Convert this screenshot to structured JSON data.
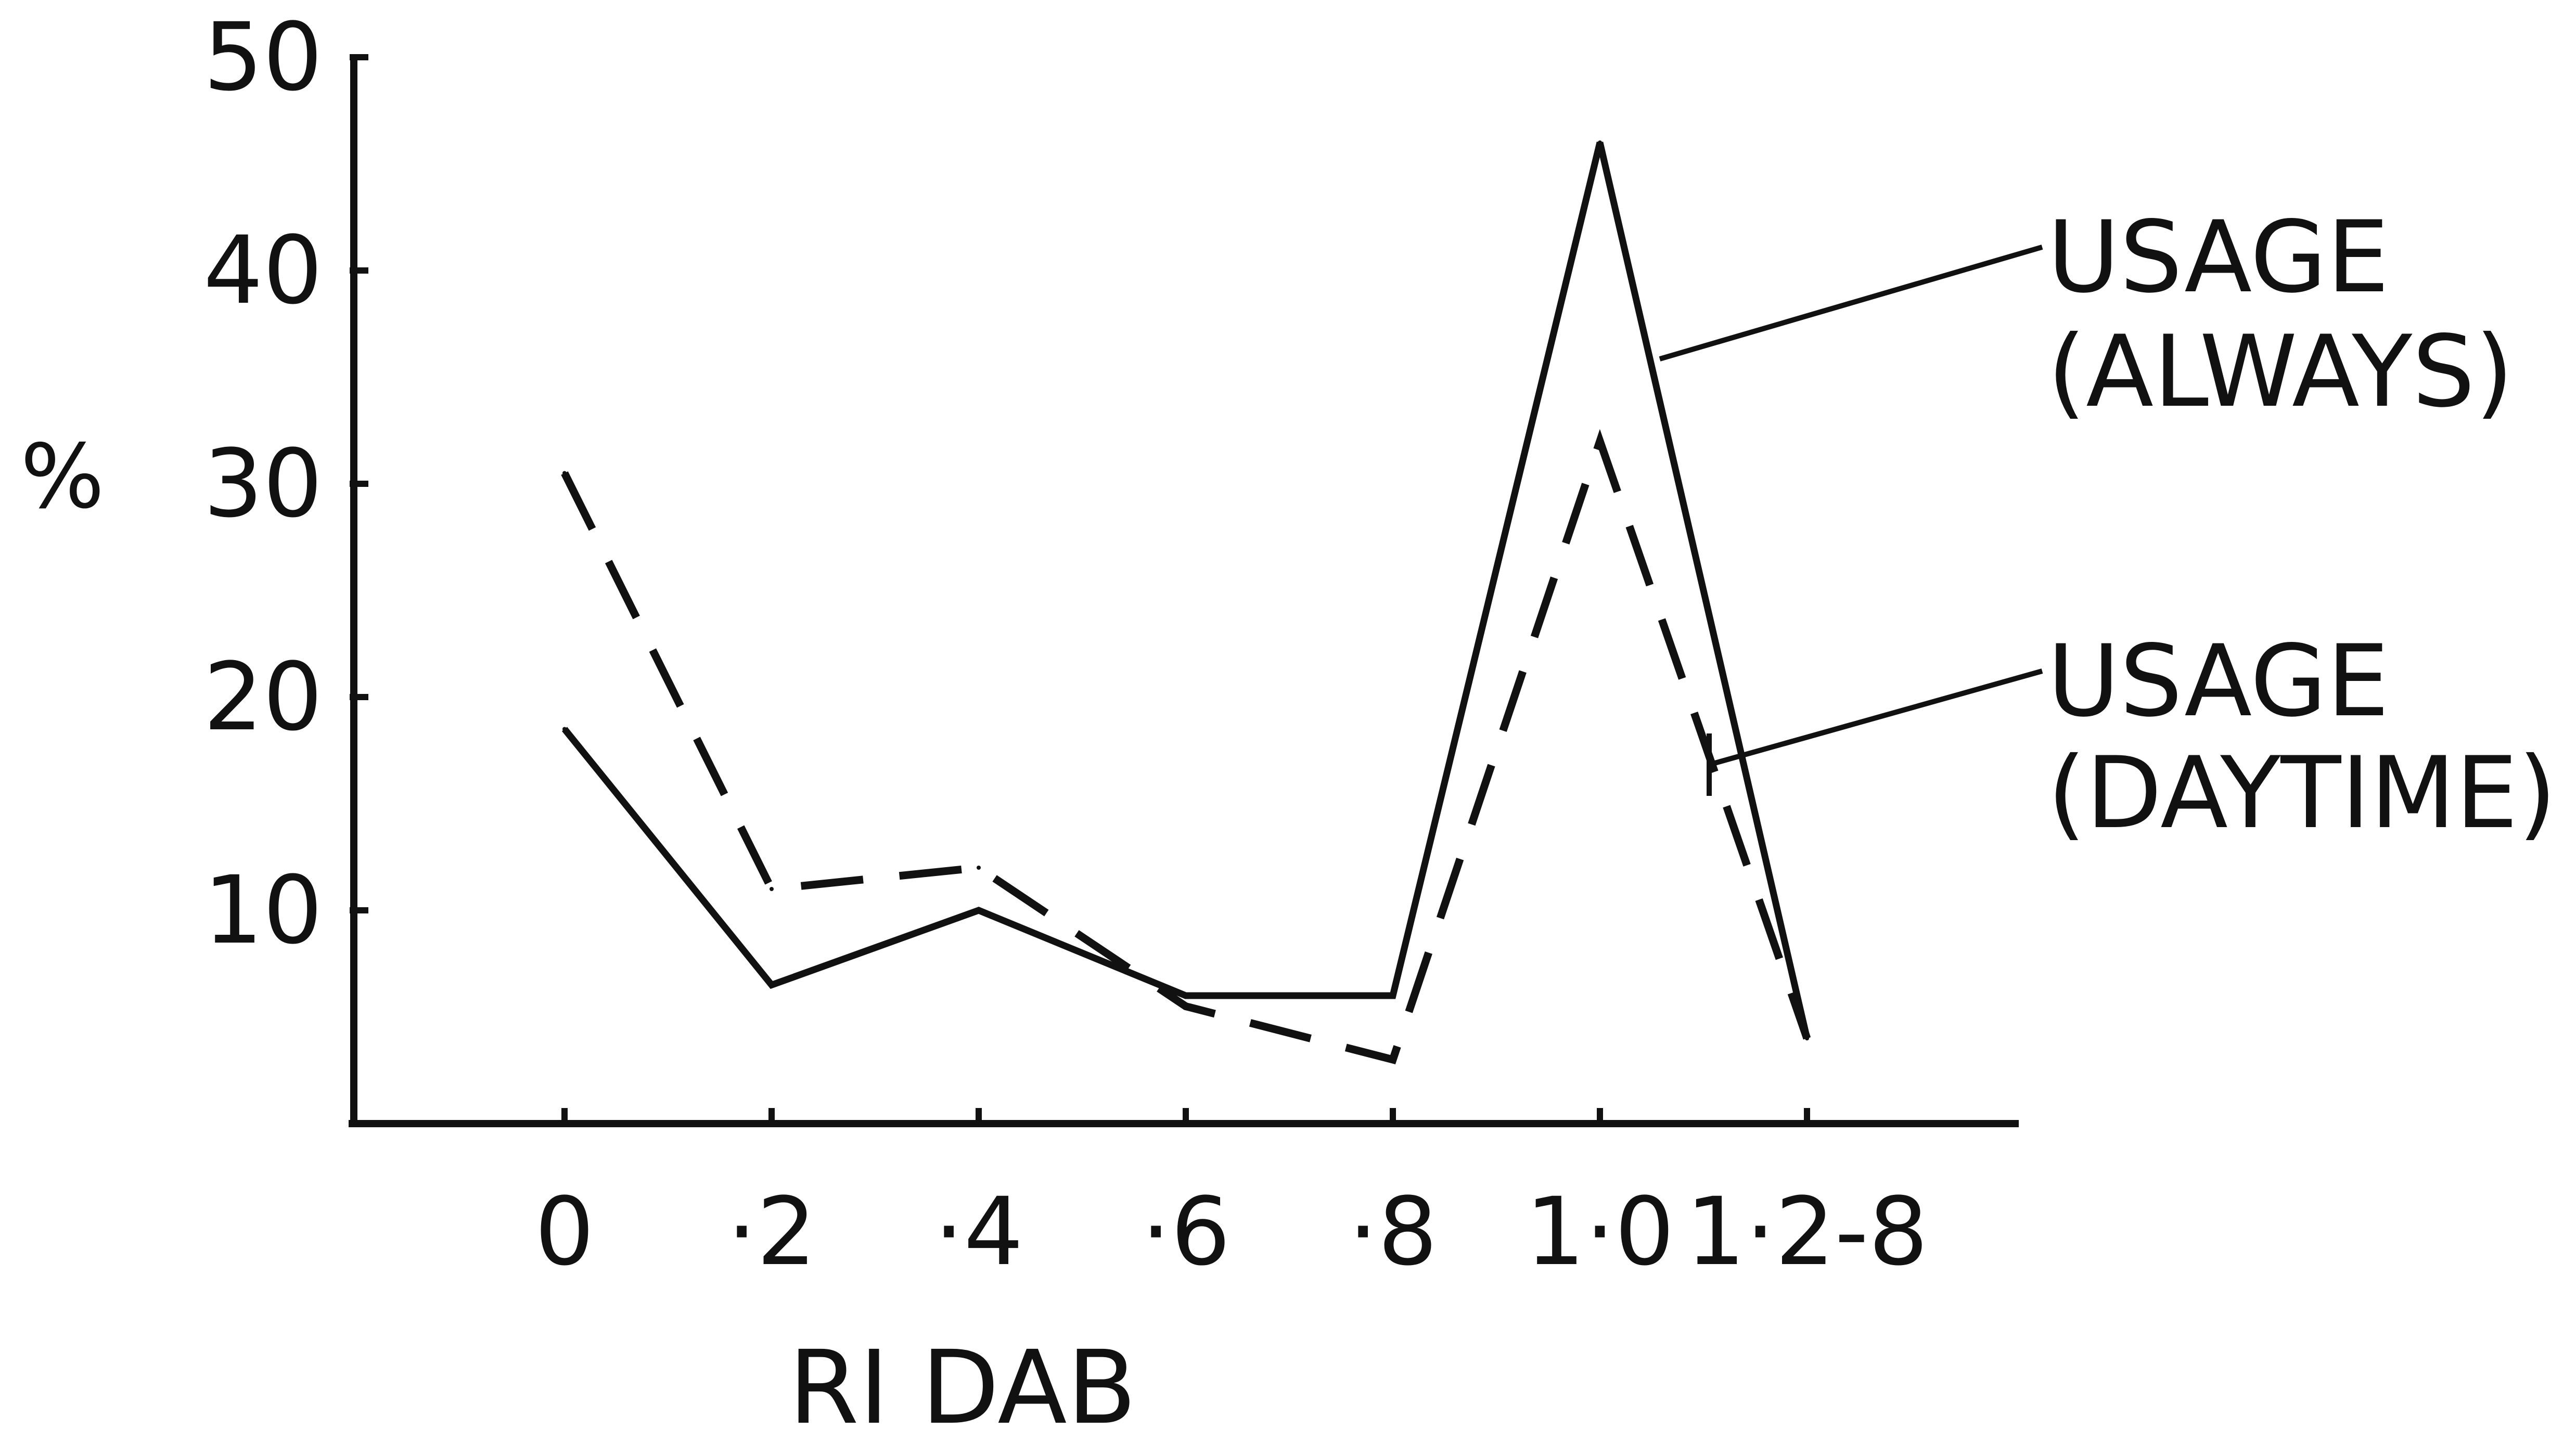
{
  "chart_data": {
    "type": "line",
    "title": "",
    "xlabel": "RI DAB",
    "ylabel": "%",
    "categories": [
      "0",
      "·2",
      "·4",
      "·6",
      "·8",
      "1·0",
      "1·2-8"
    ],
    "yticks": [
      "10",
      "20",
      "30",
      "40",
      "50"
    ],
    "ylim": [
      0,
      50
    ],
    "grid": false,
    "legend": "right, labels with leader lines",
    "series": [
      {
        "name": "USAGE (ALWAYS)",
        "name_lines": [
          "USAGE",
          "(ALWAYS)"
        ],
        "style": "solid",
        "values": [
          18.5,
          6.5,
          10,
          6,
          6,
          46,
          4
        ]
      },
      {
        "name": "USAGE (DAYTIME)",
        "name_lines": [
          "USAGE",
          "(DAYTIME)"
        ],
        "style": "dashed",
        "values": [
          30.5,
          11,
          12,
          5.5,
          3,
          32,
          4
        ]
      }
    ],
    "colors": {
      "ink": "#111111",
      "background": "#ffffff"
    }
  }
}
